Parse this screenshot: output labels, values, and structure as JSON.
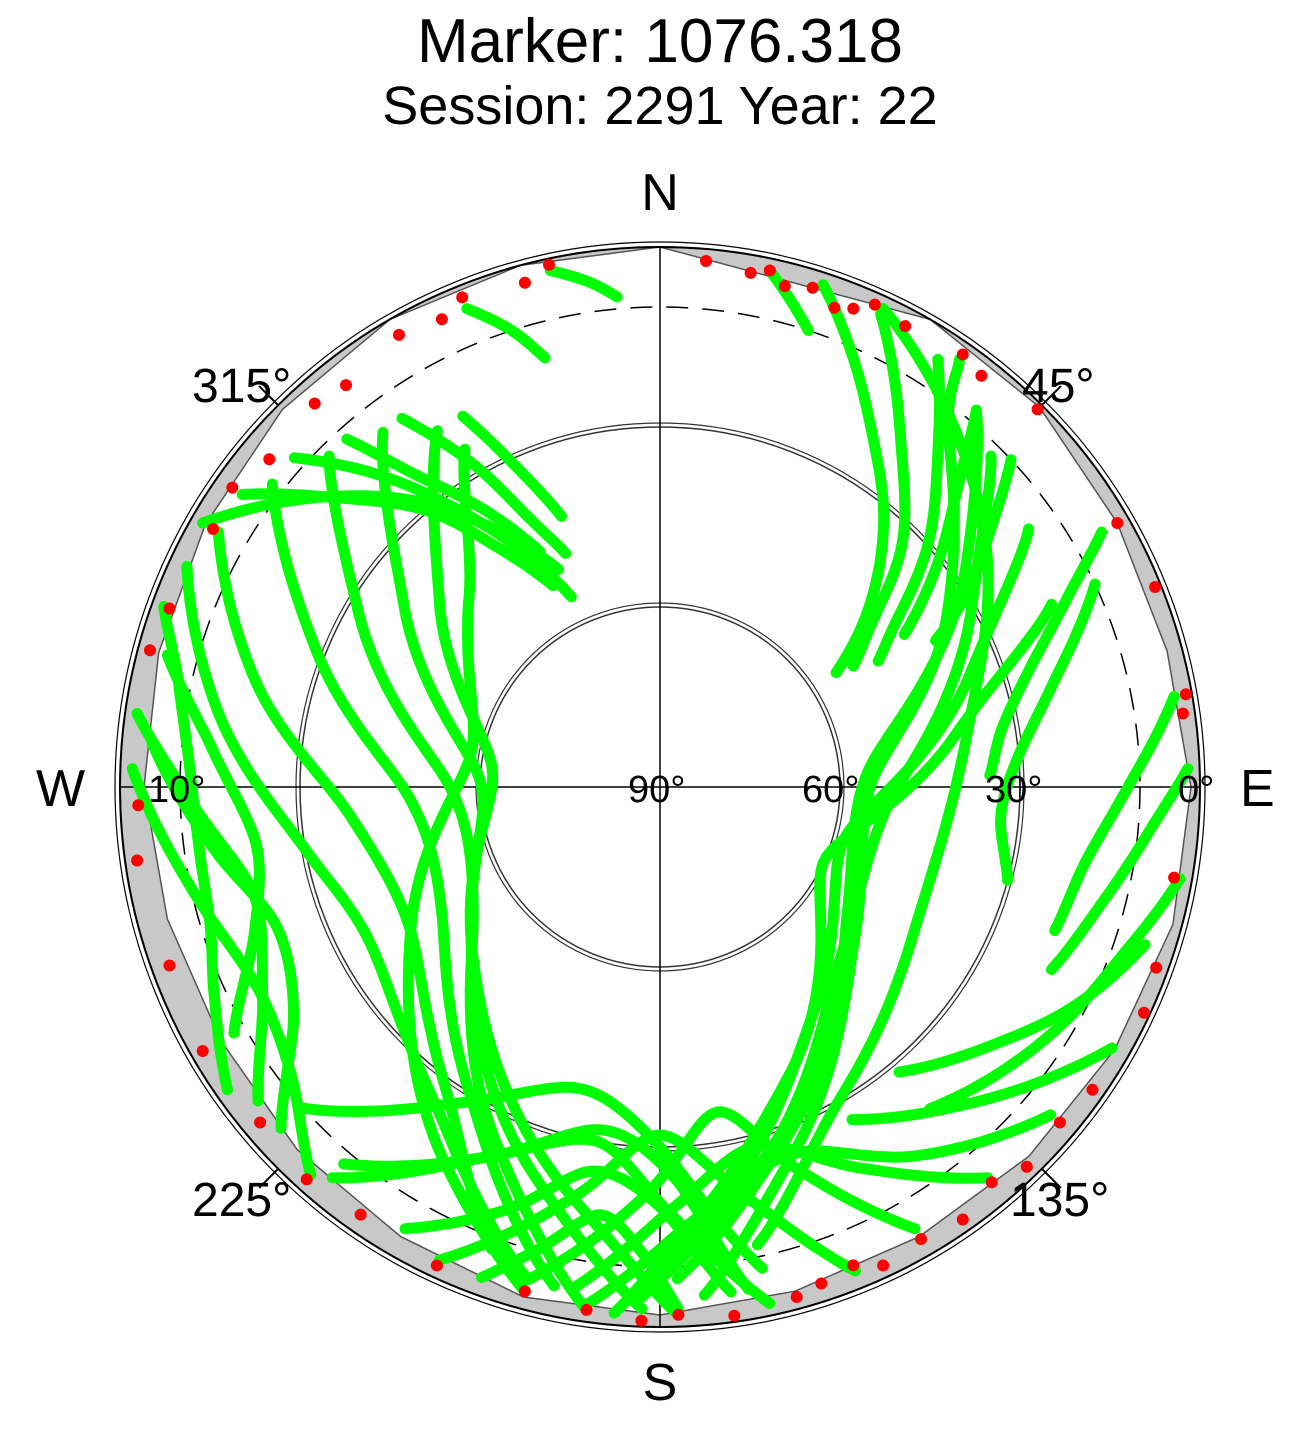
{
  "chart_data": {
    "type": "scatter",
    "projection": "polar-skyplot",
    "title": "Marker: 1076.318",
    "subtitle": "Session: 2291 Year: 22",
    "compass": {
      "north": "N",
      "south": "S",
      "east": "E",
      "west": "W"
    },
    "azimuth_labels": [
      "315°",
      "45°",
      "225°",
      "135°"
    ],
    "elevation_labels": [
      "10°",
      "90°",
      "60°",
      "30°",
      "0°"
    ],
    "elevation_range": [
      0,
      90
    ],
    "elevation_rings": [
      30,
      60
    ],
    "elevation_mask_dashed": 10,
    "colors": {
      "tracked": "#00ff00",
      "flagged": "#ff0000",
      "horizon_obstruction": "#c8c8c8",
      "grid": "#000000"
    },
    "tracks": [
      {
        "az": [
          18,
          30,
          40,
          50,
          57
        ],
        "el": [
          2,
          20,
          32,
          45,
          55
        ]
      },
      {
        "az": [
          25,
          35,
          45,
          52,
          58
        ],
        "el": [
          3,
          20,
          33,
          45,
          52
        ]
      },
      {
        "az": [
          33,
          40,
          48,
          55,
          60
        ],
        "el": [
          5,
          18,
          30,
          42,
          48
        ]
      },
      {
        "az": [
          40,
          45,
          52,
          58
        ],
        "el": [
          8,
          20,
          32,
          42
        ]
      },
      {
        "az": [
          47,
          52,
          58,
          62
        ],
        "el": [
          10,
          20,
          30,
          38
        ]
      },
      {
        "az": [
          60,
          65,
          72,
          80,
          88
        ],
        "el": [
          5,
          15,
          25,
          32,
          35
        ]
      },
      {
        "az": [
          65,
          75,
          85,
          95,
          105
        ],
        "el": [
          10,
          22,
          30,
          33,
          30
        ]
      },
      {
        "az": [
          80,
          90,
          100,
          110
        ],
        "el": [
          3,
          12,
          18,
          20
        ]
      },
      {
        "az": [
          88,
          95,
          105,
          115
        ],
        "el": [
          2,
          8,
          14,
          18
        ]
      },
      {
        "az": [
          100,
          110,
          120,
          130,
          140
        ],
        "el": [
          2,
          8,
          12,
          16,
          20
        ]
      },
      {
        "az": [
          108,
          118,
          128,
          140
        ],
        "el": [
          5,
          12,
          20,
          28
        ]
      },
      {
        "az": [
          120,
          128,
          138,
          150
        ],
        "el": [
          3,
          10,
          18,
          26
        ]
      },
      {
        "az": [
          35,
          40,
          60,
          90,
          130,
          160,
          175
        ],
        "el": [
          3,
          15,
          35,
          55,
          48,
          25,
          5
        ]
      },
      {
        "az": [
          40,
          55,
          85,
          125,
          160,
          178
        ],
        "el": [
          8,
          28,
          55,
          52,
          28,
          8
        ]
      },
      {
        "az": [
          45,
          60,
          95,
          135,
          165,
          180
        ],
        "el": [
          12,
          30,
          52,
          48,
          25,
          8
        ]
      },
      {
        "az": [
          55,
          70,
          105,
          145,
          170,
          182
        ],
        "el": [
          15,
          35,
          58,
          45,
          22,
          5
        ]
      },
      {
        "az": [
          25,
          50,
          80,
          115,
          150,
          168
        ],
        "el": [
          2,
          20,
          38,
          42,
          30,
          12
        ]
      },
      {
        "az": [
          65,
          80,
          115,
          155,
          175,
          185
        ],
        "el": [
          18,
          40,
          60,
          38,
          18,
          2
        ]
      },
      {
        "az": [
          130,
          145,
          160,
          175,
          188
        ],
        "el": [
          5,
          15,
          25,
          18,
          3
        ]
      },
      {
        "az": [
          140,
          152,
          165,
          178,
          190
        ],
        "el": [
          5,
          18,
          28,
          20,
          5
        ]
      },
      {
        "az": [
          150,
          160,
          170,
          182,
          195
        ],
        "el": [
          5,
          22,
          35,
          22,
          5
        ]
      },
      {
        "az": [
          158,
          168,
          180,
          192,
          205
        ],
        "el": [
          3,
          20,
          32,
          20,
          3
        ]
      },
      {
        "az": [
          168,
          178,
          190,
          205,
          220
        ],
        "el": [
          2,
          18,
          30,
          22,
          5
        ]
      },
      {
        "az": [
          300,
          310,
          320,
          328,
          335
        ],
        "el": [
          2,
          15,
          28,
          40,
          50
        ]
      },
      {
        "az": [
          305,
          312,
          320,
          326,
          332
        ],
        "el": [
          5,
          18,
          30,
          42,
          52
        ]
      },
      {
        "az": [
          312,
          318,
          324,
          330,
          335
        ],
        "el": [
          8,
          20,
          33,
          45,
          55
        ]
      },
      {
        "az": [
          318,
          322,
          328,
          333
        ],
        "el": [
          12,
          24,
          36,
          46
        ]
      },
      {
        "az": [
          325,
          330,
          334,
          338
        ],
        "el": [
          15,
          28,
          40,
          48
        ]
      },
      {
        "az": [
          332,
          336,
          340
        ],
        "el": [
          20,
          32,
          42
        ]
      },
      {
        "az": [
          338,
          342,
          345
        ],
        "el": [
          4,
          10,
          16
        ]
      },
      {
        "az": [
          348,
          352,
          355
        ],
        "el": [
          2,
          5,
          8
        ]
      },
      {
        "az": [
          12,
          15,
          18
        ],
        "el": [
          2,
          6,
          10
        ]
      },
      {
        "az": [
          295,
          280,
          260,
          240,
          215,
          195
        ],
        "el": [
          3,
          15,
          30,
          35,
          25,
          5
        ]
      },
      {
        "az": [
          300,
          285,
          265,
          240,
          215,
          200
        ],
        "el": [
          5,
          20,
          38,
          42,
          28,
          8
        ]
      },
      {
        "az": [
          308,
          292,
          268,
          240,
          212,
          192
        ],
        "el": [
          8,
          28,
          48,
          48,
          30,
          5
        ]
      },
      {
        "az": [
          315,
          300,
          270,
          235,
          205,
          188
        ],
        "el": [
          12,
          32,
          55,
          52,
          25,
          2
        ]
      },
      {
        "az": [
          322,
          305,
          272,
          232,
          198,
          182
        ],
        "el": [
          15,
          38,
          60,
          50,
          22,
          3
        ]
      },
      {
        "az": [
          328,
          310,
          275,
          228,
          192,
          178
        ],
        "el": [
          20,
          42,
          62,
          48,
          20,
          2
        ]
      },
      {
        "az": [
          330,
          315,
          280,
          240,
          210,
          195
        ],
        "el": [
          25,
          45,
          58,
          42,
          18,
          3
        ]
      },
      {
        "az": [
          285,
          275,
          262,
          250,
          240
        ],
        "el": [
          5,
          15,
          22,
          18,
          8
        ]
      },
      {
        "az": [
          278,
          268,
          255,
          242,
          232
        ],
        "el": [
          2,
          12,
          20,
          15,
          5
        ]
      },
      {
        "az": [
          290,
          282,
          270,
          255,
          245,
          235
        ],
        "el": [
          2,
          8,
          12,
          12,
          8,
          2
        ]
      },
      {
        "az": [
          275,
          262,
          250,
          238,
          228
        ],
        "el": [
          5,
          15,
          22,
          18,
          5
        ]
      },
      {
        "az": [
          272,
          258,
          244,
          232,
          222
        ],
        "el": [
          2,
          10,
          15,
          12,
          3
        ]
      },
      {
        "az": [
          210,
          200,
          190,
          180,
          172
        ],
        "el": [
          5,
          15,
          25,
          20,
          5
        ]
      },
      {
        "az": [
          220,
          205,
          190,
          178,
          170
        ],
        "el": [
          8,
          22,
          32,
          25,
          5
        ]
      },
      {
        "az": [
          228,
          212,
          195,
          180,
          168
        ],
        "el": [
          10,
          28,
          38,
          30,
          8
        ]
      },
      {
        "az": [
          200,
          195,
          188,
          182,
          178
        ],
        "el": [
          3,
          10,
          18,
          12,
          3
        ]
      }
    ],
    "flagged_points": [
      {
        "az": 5,
        "el": 2
      },
      {
        "az": 10,
        "el": 3
      },
      {
        "az": 12,
        "el": 2
      },
      {
        "az": 14,
        "el": 4
      },
      {
        "az": 17,
        "el": 3
      },
      {
        "az": 20,
        "el": 5
      },
      {
        "az": 22,
        "el": 4
      },
      {
        "az": 24,
        "el": 2
      },
      {
        "az": 28,
        "el": 3
      },
      {
        "az": 35,
        "el": 2
      },
      {
        "az": 38,
        "el": 3
      },
      {
        "az": 45,
        "el": 1
      },
      {
        "az": 60,
        "el": 2
      },
      {
        "az": 68,
        "el": 1
      },
      {
        "az": 80,
        "el": 1
      },
      {
        "az": 82,
        "el": 2
      },
      {
        "az": 100,
        "el": 3
      },
      {
        "az": 110,
        "el": 2
      },
      {
        "az": 115,
        "el": 1
      },
      {
        "az": 125,
        "el": 2
      },
      {
        "az": 130,
        "el": 3
      },
      {
        "az": 136,
        "el": 2
      },
      {
        "az": 140,
        "el": 4
      },
      {
        "az": 145,
        "el": 2
      },
      {
        "az": 150,
        "el": 3
      },
      {
        "az": 155,
        "el": 2
      },
      {
        "az": 158,
        "el": 4
      },
      {
        "az": 162,
        "el": 3
      },
      {
        "az": 165,
        "el": 2
      },
      {
        "az": 172,
        "el": 1
      },
      {
        "az": 178,
        "el": 2
      },
      {
        "az": 182,
        "el": 1
      },
      {
        "az": 188,
        "el": 2
      },
      {
        "az": 195,
        "el": 3
      },
      {
        "az": 205,
        "el": 2
      },
      {
        "az": 215,
        "el": 3
      },
      {
        "az": 222,
        "el": 2
      },
      {
        "az": 230,
        "el": 3
      },
      {
        "az": 240,
        "el": 2
      },
      {
        "az": 250,
        "el": 3
      },
      {
        "az": 262,
        "el": 2
      },
      {
        "az": 268,
        "el": 3
      },
      {
        "az": 285,
        "el": 2
      },
      {
        "az": 290,
        "el": 3
      },
      {
        "az": 300,
        "el": 4
      },
      {
        "az": 305,
        "el": 3
      },
      {
        "az": 310,
        "el": 5
      },
      {
        "az": 318,
        "el": 4
      },
      {
        "az": 322,
        "el": 5
      },
      {
        "az": 330,
        "el": 3
      },
      {
        "az": 335,
        "el": 4
      },
      {
        "az": 338,
        "el": 2
      },
      {
        "az": 345,
        "el": 3
      },
      {
        "az": 348,
        "el": 1
      }
    ],
    "horizon_obstruction_el": [
      {
        "az": 0,
        "el": 0
      },
      {
        "az": 30,
        "el": 0
      },
      {
        "az": 45,
        "el": 0.5
      },
      {
        "az": 60,
        "el": 2
      },
      {
        "az": 75,
        "el": 2.5
      },
      {
        "az": 90,
        "el": 1.5
      },
      {
        "az": 105,
        "el": 1.5
      },
      {
        "az": 120,
        "el": 2.5
      },
      {
        "az": 135,
        "el": 3
      },
      {
        "az": 150,
        "el": 3.5
      },
      {
        "az": 165,
        "el": 3
      },
      {
        "az": 180,
        "el": 2
      },
      {
        "az": 195,
        "el": 2
      },
      {
        "az": 210,
        "el": 3.5
      },
      {
        "az": 225,
        "el": 4.5
      },
      {
        "az": 240,
        "el": 5.5
      },
      {
        "az": 255,
        "el": 5
      },
      {
        "az": 270,
        "el": 4
      },
      {
        "az": 285,
        "el": 3.5
      },
      {
        "az": 300,
        "el": 2.5
      },
      {
        "az": 315,
        "el": 1
      },
      {
        "az": 330,
        "el": 0
      },
      {
        "az": 345,
        "el": 0
      },
      {
        "az": 360,
        "el": 0
      }
    ]
  }
}
